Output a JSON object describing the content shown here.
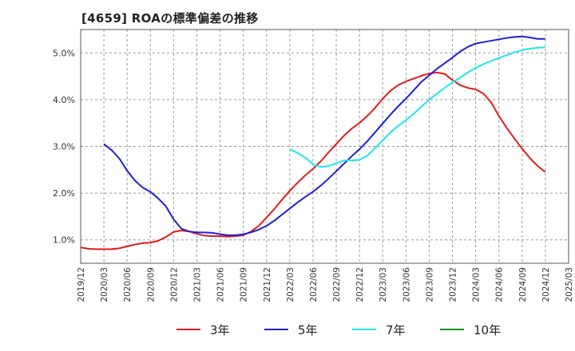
{
  "title": "[4659]  ROAの標準偏差の推移",
  "chart_data": {
    "type": "line",
    "x_labels": [
      "2019/12",
      "2020/03",
      "2020/06",
      "2020/09",
      "2020/12",
      "2021/03",
      "2021/06",
      "2021/09",
      "2021/12",
      "2022/03",
      "2022/06",
      "2022/09",
      "2022/12",
      "2023/03",
      "2023/06",
      "2023/09",
      "2023/12",
      "2024/03",
      "2024/06",
      "2024/09",
      "2024/12",
      "2025/03"
    ],
    "y_ticks": [
      1.0,
      2.0,
      3.0,
      4.0,
      5.0
    ],
    "y_tick_labels": [
      "1.0%",
      "2.0%",
      "3.0%",
      "4.0%",
      "5.0%"
    ],
    "ylim": [
      0.5,
      5.5
    ],
    "grid": "horizontal dashed",
    "legend_position": "bottom",
    "series": [
      {
        "name": "3年",
        "color": "#e31a1c",
        "x": [
          "2019/12",
          "2020/01",
          "2020/02",
          "2020/03",
          "2020/04",
          "2020/05",
          "2020/06",
          "2020/07",
          "2020/08",
          "2020/09",
          "2020/10",
          "2020/11",
          "2020/12",
          "2021/01",
          "2021/02",
          "2021/03",
          "2021/04",
          "2021/05",
          "2021/06",
          "2021/07",
          "2021/08",
          "2021/09",
          "2021/10",
          "2021/11",
          "2021/12",
          "2022/01",
          "2022/02",
          "2022/03",
          "2022/04",
          "2022/05",
          "2022/06",
          "2022/07",
          "2022/08",
          "2022/09",
          "2022/10",
          "2022/11",
          "2022/12",
          "2023/01",
          "2023/02",
          "2023/03",
          "2023/04",
          "2023/05",
          "2023/06",
          "2023/07",
          "2023/08",
          "2023/09",
          "2023/10",
          "2023/11",
          "2023/12",
          "2024/01",
          "2024/02",
          "2024/03",
          "2024/04",
          "2024/05",
          "2024/06",
          "2024/07",
          "2024/08",
          "2024/09",
          "2024/10",
          "2024/11",
          "2024/12"
        ],
        "values": [
          0.84,
          0.81,
          0.8,
          0.8,
          0.8,
          0.82,
          0.86,
          0.9,
          0.93,
          0.94,
          0.98,
          1.06,
          1.17,
          1.2,
          1.18,
          1.13,
          1.09,
          1.08,
          1.08,
          1.07,
          1.08,
          1.1,
          1.18,
          1.3,
          1.48,
          1.66,
          1.86,
          2.05,
          2.22,
          2.38,
          2.52,
          2.68,
          2.87,
          3.05,
          3.23,
          3.38,
          3.5,
          3.65,
          3.82,
          4.02,
          4.19,
          4.31,
          4.39,
          4.45,
          4.51,
          4.56,
          4.58,
          4.55,
          4.42,
          4.31,
          4.25,
          4.22,
          4.13,
          3.94,
          3.65,
          3.4,
          3.17,
          2.95,
          2.75,
          2.58,
          2.45
        ]
      },
      {
        "name": "5年",
        "color": "#1f1fd6",
        "x": [
          "2020/03",
          "2020/04",
          "2020/05",
          "2020/06",
          "2020/07",
          "2020/08",
          "2020/09",
          "2020/10",
          "2020/11",
          "2020/12",
          "2021/01",
          "2021/02",
          "2021/03",
          "2021/04",
          "2021/05",
          "2021/06",
          "2021/07",
          "2021/08",
          "2021/09",
          "2021/10",
          "2021/11",
          "2021/12",
          "2022/01",
          "2022/02",
          "2022/03",
          "2022/04",
          "2022/05",
          "2022/06",
          "2022/07",
          "2022/08",
          "2022/09",
          "2022/10",
          "2022/11",
          "2022/12",
          "2023/01",
          "2023/02",
          "2023/03",
          "2023/04",
          "2023/05",
          "2023/06",
          "2023/07",
          "2023/08",
          "2023/09",
          "2023/10",
          "2023/11",
          "2023/12",
          "2024/01",
          "2024/02",
          "2024/03",
          "2024/04",
          "2024/05",
          "2024/06",
          "2024/07",
          "2024/08",
          "2024/09",
          "2024/10",
          "2024/11",
          "2024/12"
        ],
        "values": [
          3.05,
          2.92,
          2.74,
          2.48,
          2.27,
          2.12,
          2.03,
          1.89,
          1.72,
          1.44,
          1.24,
          1.18,
          1.16,
          1.16,
          1.15,
          1.12,
          1.1,
          1.1,
          1.12,
          1.16,
          1.22,
          1.3,
          1.41,
          1.54,
          1.67,
          1.8,
          1.92,
          2.03,
          2.16,
          2.31,
          2.47,
          2.63,
          2.79,
          2.94,
          3.11,
          3.3,
          3.49,
          3.68,
          3.86,
          4.02,
          4.2,
          4.38,
          4.52,
          4.66,
          4.78,
          4.9,
          5.03,
          5.13,
          5.2,
          5.23,
          5.26,
          5.29,
          5.32,
          5.34,
          5.35,
          5.33,
          5.3,
          5.3
        ]
      },
      {
        "name": "7年",
        "color": "#1ee6ee",
        "x": [
          "2022/03",
          "2022/04",
          "2022/05",
          "2022/06",
          "2022/07",
          "2022/08",
          "2022/09",
          "2022/10",
          "2022/11",
          "2022/12",
          "2023/01",
          "2023/02",
          "2023/03",
          "2023/04",
          "2023/05",
          "2023/06",
          "2023/07",
          "2023/08",
          "2023/09",
          "2023/10",
          "2023/11",
          "2023/12",
          "2024/01",
          "2024/02",
          "2024/03",
          "2024/04",
          "2024/05",
          "2024/06",
          "2024/07",
          "2024/08",
          "2024/09",
          "2024/10",
          "2024/11",
          "2024/12"
        ],
        "values": [
          2.94,
          2.86,
          2.76,
          2.62,
          2.56,
          2.58,
          2.64,
          2.7,
          2.7,
          2.71,
          2.8,
          2.96,
          3.13,
          3.3,
          3.44,
          3.56,
          3.7,
          3.85,
          4.0,
          4.13,
          4.25,
          4.37,
          4.47,
          4.58,
          4.68,
          4.76,
          4.83,
          4.89,
          4.95,
          5.01,
          5.06,
          5.09,
          5.11,
          5.12
        ]
      },
      {
        "name": "10年",
        "color": "#1e8c1e",
        "x": [],
        "values": []
      }
    ]
  }
}
